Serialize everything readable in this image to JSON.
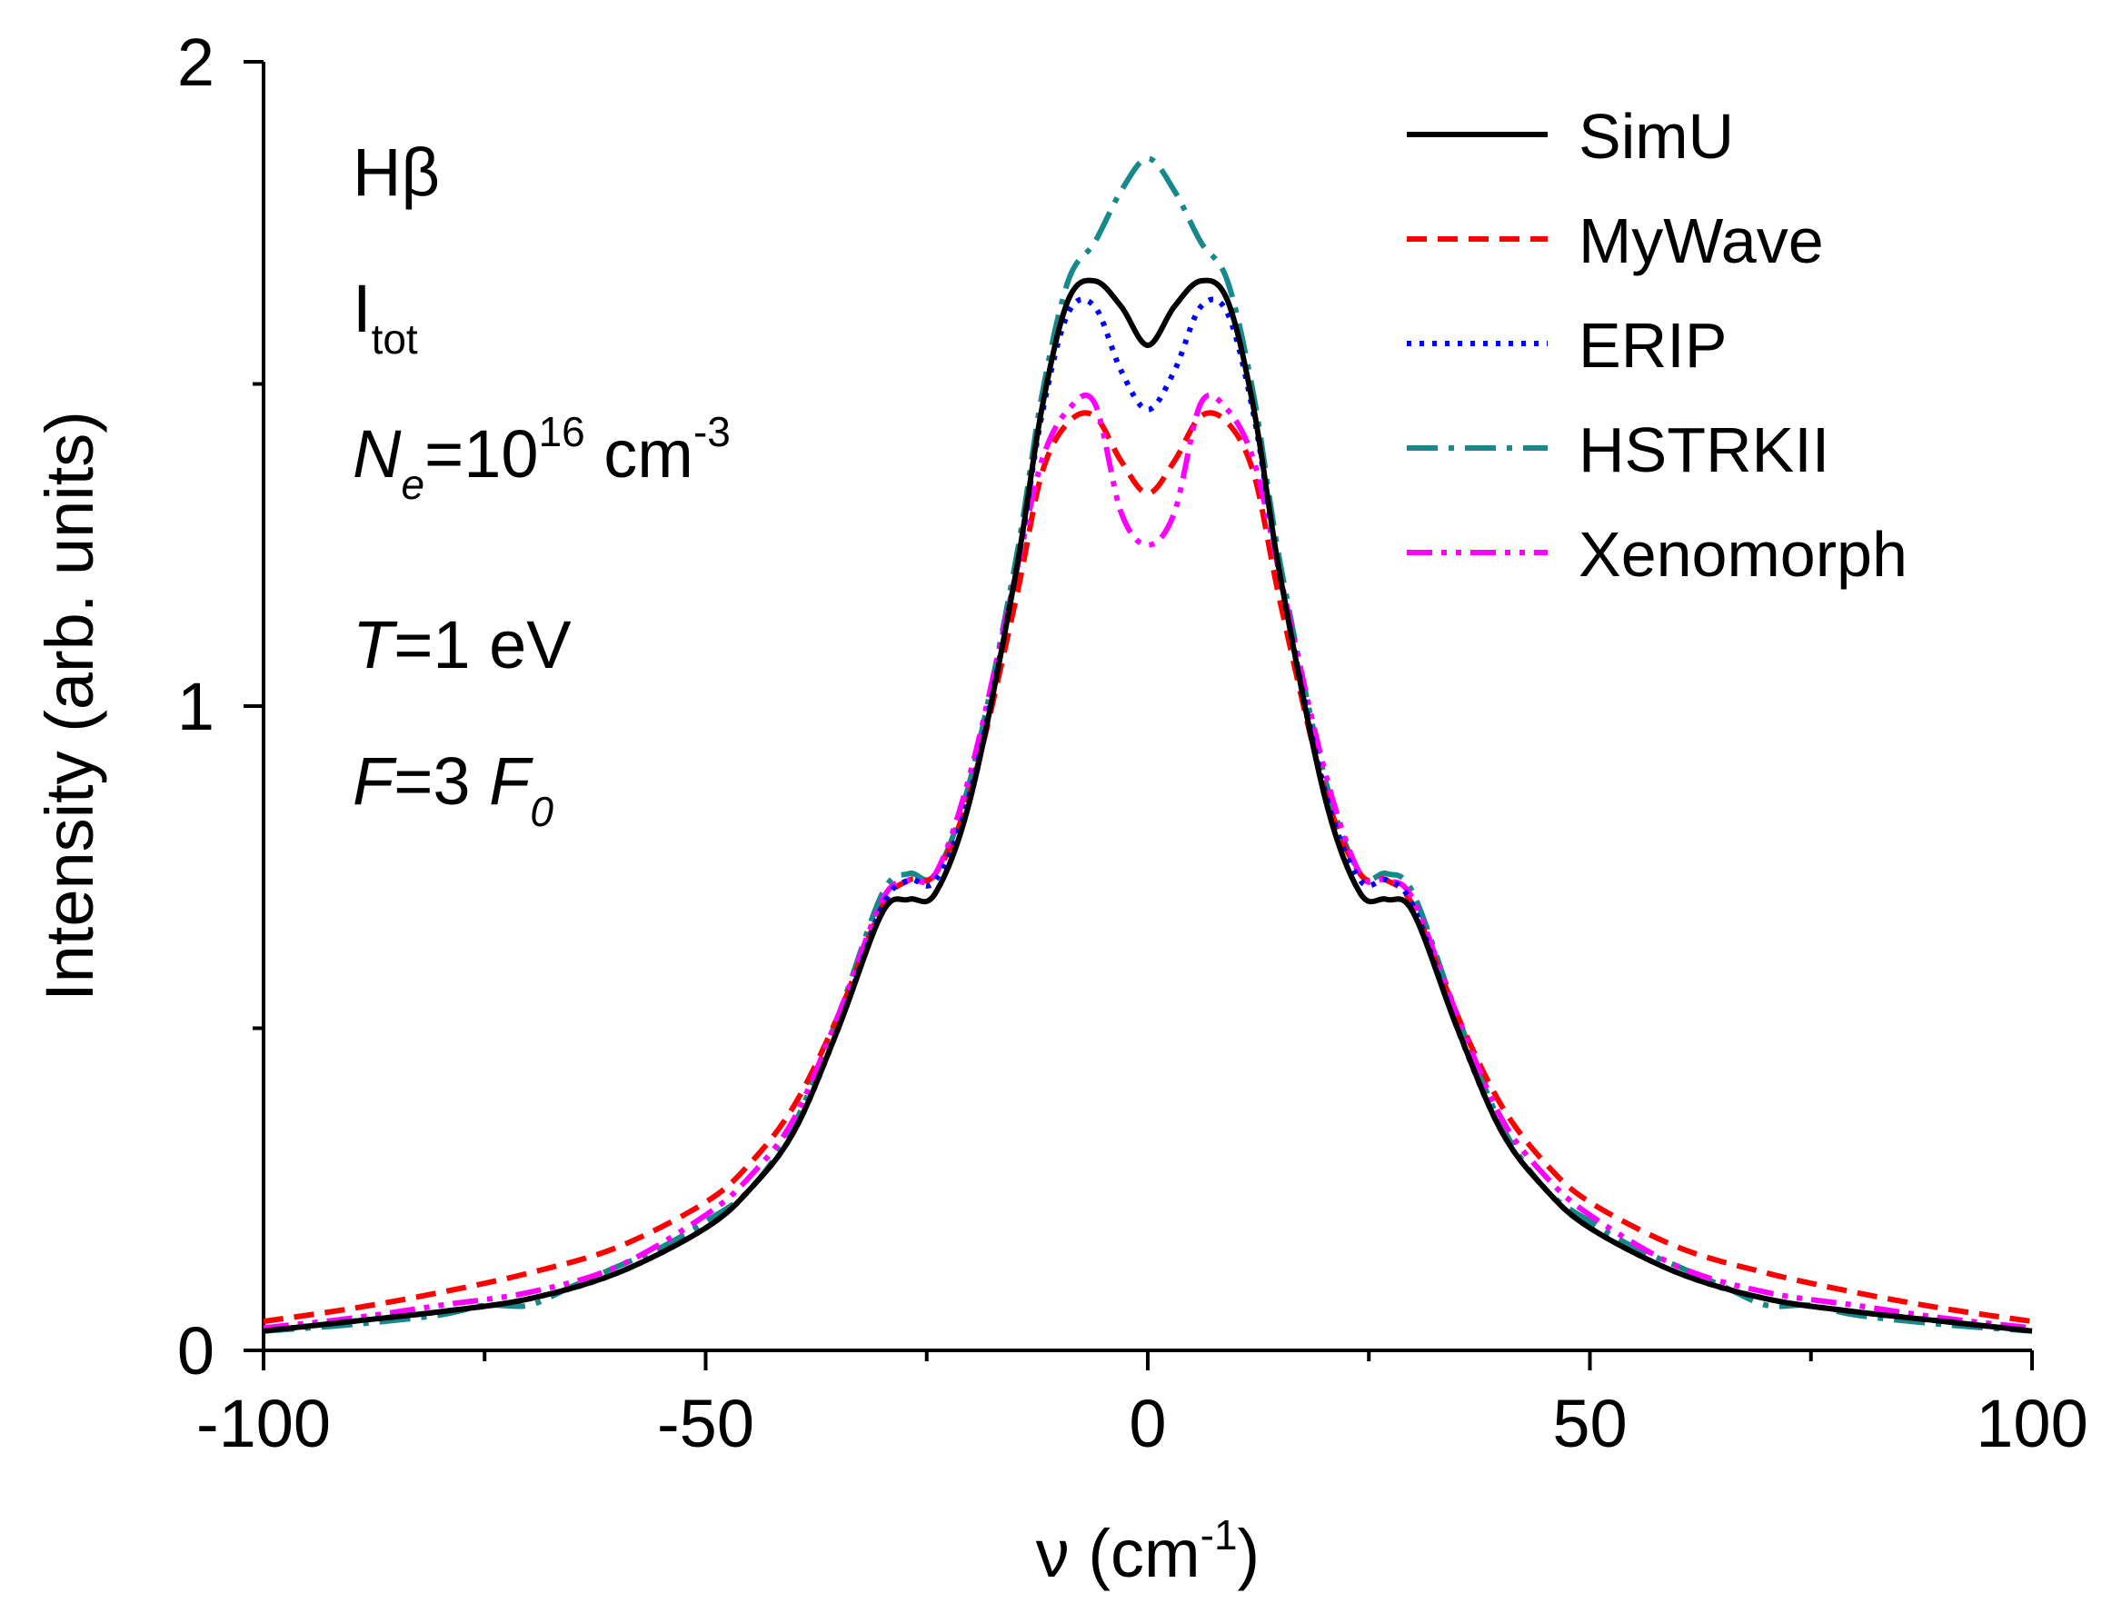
{
  "chart_data": {
    "type": "line",
    "xlabel": {
      "main": "ν (cm",
      "sup": "-1",
      "tail": ")"
    },
    "ylabel": "Intensity (arb. units)",
    "xlim": [
      -100,
      100
    ],
    "ylim": [
      0,
      2
    ],
    "x_ticks": [
      -100,
      -50,
      0,
      50,
      100
    ],
    "y_ticks": [
      0,
      1,
      2
    ],
    "grid": false,
    "legend_position": "top-right",
    "annotations": {
      "line": "Hβ",
      "intensity": {
        "main": "I",
        "sub": "tot"
      },
      "density": {
        "var": "N",
        "sub": "e",
        "eq": "=10",
        "exp": "16",
        "unit": " cm",
        "unit_exp": "-3"
      },
      "temperature": {
        "var": "T",
        "rest": "=1 eV"
      },
      "field": {
        "var": "F",
        "mid": "=3 ",
        "var2": "F",
        "sub2": "0"
      }
    },
    "series": [
      {
        "name": "SimU",
        "color": "#000000",
        "dash": "solid",
        "x": [
          -100,
          -90,
          -80,
          -70,
          -60,
          -50,
          -45,
          -40,
          -35,
          -30,
          -27,
          -24,
          -20,
          -15,
          -12,
          -9,
          -6,
          -3,
          0,
          3,
          6,
          9,
          12,
          15,
          20,
          24,
          27,
          30,
          35,
          40,
          45,
          50,
          60,
          70,
          80,
          90,
          100
        ],
        "y": [
          0.03,
          0.045,
          0.06,
          0.08,
          0.12,
          0.19,
          0.25,
          0.34,
          0.5,
          0.68,
          0.7,
          0.71,
          0.86,
          1.2,
          1.46,
          1.63,
          1.66,
          1.62,
          1.56,
          1.62,
          1.66,
          1.63,
          1.46,
          1.2,
          0.86,
          0.71,
          0.7,
          0.68,
          0.5,
          0.34,
          0.25,
          0.19,
          0.12,
          0.08,
          0.06,
          0.045,
          0.03
        ]
      },
      {
        "name": "MyWave",
        "color": "#ff0000",
        "dash": "dashed",
        "x": [
          -100,
          -90,
          -80,
          -70,
          -60,
          -50,
          -45,
          -40,
          -35,
          -30,
          -27,
          -24,
          -20,
          -15,
          -12,
          -9,
          -6,
          -3,
          0,
          3,
          6,
          9,
          12,
          15,
          20,
          24,
          27,
          30,
          35,
          40,
          45,
          50,
          60,
          70,
          80,
          90,
          100
        ],
        "y": [
          0.045,
          0.065,
          0.09,
          0.12,
          0.16,
          0.23,
          0.29,
          0.38,
          0.52,
          0.69,
          0.73,
          0.74,
          0.87,
          1.16,
          1.36,
          1.44,
          1.45,
          1.38,
          1.33,
          1.38,
          1.45,
          1.44,
          1.36,
          1.16,
          0.87,
          0.74,
          0.73,
          0.69,
          0.52,
          0.38,
          0.29,
          0.23,
          0.16,
          0.12,
          0.09,
          0.065,
          0.045
        ]
      },
      {
        "name": "ERIP",
        "color": "#0000ff",
        "dash": "dotted",
        "x": [
          -100,
          -90,
          -80,
          -70,
          -60,
          -50,
          -45,
          -40,
          -35,
          -30,
          -27,
          -24,
          -20,
          -15,
          -12,
          -9,
          -6,
          -3,
          0,
          3,
          6,
          9,
          12,
          15,
          20,
          24,
          27,
          30,
          35,
          40,
          45,
          50,
          60,
          70,
          80,
          90,
          100
        ],
        "y": [
          0.03,
          0.045,
          0.06,
          0.08,
          0.12,
          0.19,
          0.25,
          0.34,
          0.5,
          0.69,
          0.73,
          0.73,
          0.87,
          1.2,
          1.45,
          1.61,
          1.62,
          1.52,
          1.46,
          1.52,
          1.62,
          1.61,
          1.45,
          1.2,
          0.87,
          0.73,
          0.73,
          0.69,
          0.5,
          0.34,
          0.25,
          0.19,
          0.12,
          0.08,
          0.06,
          0.045,
          0.03
        ]
      },
      {
        "name": "HSTRKII",
        "color": "#168a8a",
        "dash": "dashdot",
        "x": [
          -100,
          -90,
          -80,
          -75,
          -70,
          -65,
          -60,
          -55,
          -50,
          -45,
          -40,
          -35,
          -30,
          -27,
          -24,
          -20,
          -15,
          -12,
          -9,
          -6,
          -3,
          0,
          3,
          6,
          9,
          12,
          15,
          20,
          24,
          27,
          30,
          35,
          40,
          45,
          50,
          55,
          60,
          65,
          70,
          75,
          80,
          90,
          100
        ],
        "y": [
          0.03,
          0.04,
          0.055,
          0.07,
          0.07,
          0.1,
          0.13,
          0.16,
          0.2,
          0.25,
          0.35,
          0.52,
          0.71,
          0.74,
          0.74,
          0.89,
          1.22,
          1.48,
          1.66,
          1.72,
          1.8,
          1.85,
          1.8,
          1.72,
          1.66,
          1.48,
          1.22,
          0.89,
          0.74,
          0.74,
          0.71,
          0.52,
          0.35,
          0.25,
          0.2,
          0.16,
          0.13,
          0.1,
          0.07,
          0.07,
          0.055,
          0.04,
          0.03
        ]
      },
      {
        "name": "Xenomorph",
        "color": "#ff00ff",
        "dash": "dashdotdot",
        "x": [
          -100,
          -90,
          -80,
          -70,
          -60,
          -50,
          -45,
          -40,
          -35,
          -30,
          -27,
          -24,
          -20,
          -15,
          -12,
          -9,
          -6,
          -3,
          0,
          3,
          6,
          9,
          12,
          15,
          20,
          24,
          27,
          30,
          35,
          40,
          45,
          50,
          60,
          70,
          80,
          90,
          100
        ],
        "y": [
          0.035,
          0.05,
          0.07,
          0.09,
          0.13,
          0.21,
          0.27,
          0.36,
          0.52,
          0.7,
          0.73,
          0.74,
          0.9,
          1.2,
          1.38,
          1.46,
          1.47,
          1.3,
          1.25,
          1.3,
          1.47,
          1.46,
          1.38,
          1.2,
          0.9,
          0.74,
          0.73,
          0.7,
          0.52,
          0.36,
          0.27,
          0.21,
          0.13,
          0.09,
          0.07,
          0.05,
          0.035
        ]
      }
    ]
  }
}
